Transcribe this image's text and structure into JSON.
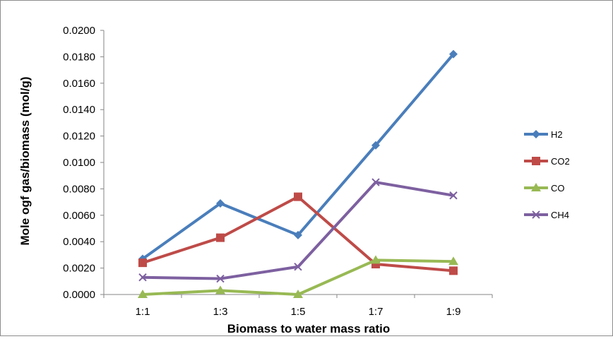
{
  "chart_data": {
    "type": "line",
    "title": "",
    "xlabel": "Biomass to water mass ratio",
    "ylabel": "Mole ogf gas/biomass (mol/g)",
    "categories": [
      "1:1",
      "1:3",
      "1:5",
      "1:7",
      "1:9"
    ],
    "ylim": [
      0,
      0.02
    ],
    "y_ticks": [
      "0.0000",
      "0.0020",
      "0.0040",
      "0.0060",
      "0.0080",
      "0.0100",
      "0.0120",
      "0.0140",
      "0.0160",
      "0.0180",
      "0.0200"
    ],
    "grid": false,
    "legend_position": "right",
    "series": [
      {
        "name": "H2",
        "color": "#4A7EBB",
        "marker": "diamond",
        "values": [
          0.0027,
          0.0069,
          0.0045,
          0.0113,
          0.0182
        ]
      },
      {
        "name": "CO2",
        "color": "#BE4B48",
        "marker": "square",
        "values": [
          0.0024,
          0.0043,
          0.0074,
          0.0023,
          0.0018
        ]
      },
      {
        "name": "CO",
        "color": "#98B954",
        "marker": "triangle",
        "values": [
          0.0,
          0.0003,
          0.0,
          0.0026,
          0.0025
        ]
      },
      {
        "name": "CH4",
        "color": "#7D60A0",
        "marker": "x",
        "values": [
          0.0013,
          0.0012,
          0.0021,
          0.0085,
          0.0075
        ]
      }
    ]
  }
}
